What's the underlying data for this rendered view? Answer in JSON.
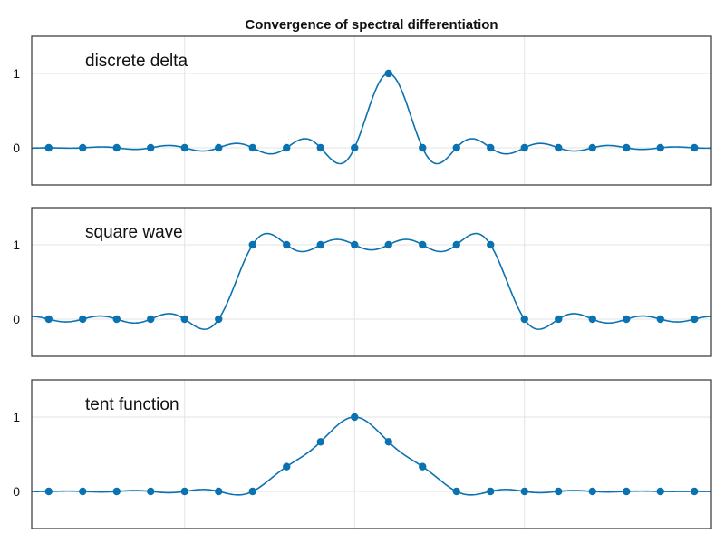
{
  "colors": {
    "series": "#0A72B0",
    "grid": "#E3E3E3",
    "frame": "#333333"
  },
  "chart_data": {
    "type": "line",
    "title": "Convergence of spectral differentiation",
    "grid": true,
    "x_samples": [
      -1.0,
      -0.9,
      -0.8,
      -0.7,
      -0.6,
      -0.5,
      -0.4,
      -0.3,
      -0.2,
      -0.1,
      0.0,
      0.1,
      0.2,
      0.3,
      0.4,
      0.5,
      0.6,
      0.7,
      0.8,
      0.9
    ],
    "xlim": [
      -1.05,
      0.95
    ],
    "panels": [
      {
        "label": "discrete delta",
        "ylim": [
          -0.5,
          1.5
        ],
        "yticks": [
          0,
          1
        ],
        "values": [
          0,
          0,
          0,
          0,
          0,
          0,
          0,
          0,
          0,
          0,
          1,
          0,
          0,
          0,
          0,
          0,
          0,
          0,
          0,
          0
        ],
        "series": [
          {
            "marker": "circle",
            "interpolation": "trigonometric"
          }
        ]
      },
      {
        "label": "square wave",
        "ylim": [
          -0.5,
          1.5
        ],
        "yticks": [
          0,
          1
        ],
        "values": [
          0,
          0,
          0,
          0,
          0,
          0,
          1,
          1,
          1,
          1,
          1,
          1,
          1,
          1,
          0,
          0,
          0,
          0,
          0,
          0
        ],
        "series": [
          {
            "marker": "circle",
            "interpolation": "trigonometric"
          }
        ]
      },
      {
        "label": "tent function",
        "ylim": [
          -0.5,
          1.5
        ],
        "yticks": [
          0,
          1
        ],
        "values": [
          0,
          0,
          0,
          0,
          0,
          0,
          0,
          0.333,
          0.667,
          1,
          0.667,
          0.333,
          0,
          0,
          0,
          0,
          0,
          0,
          0,
          0
        ],
        "series": [
          {
            "marker": "circle",
            "interpolation": "trigonometric"
          }
        ]
      }
    ]
  }
}
